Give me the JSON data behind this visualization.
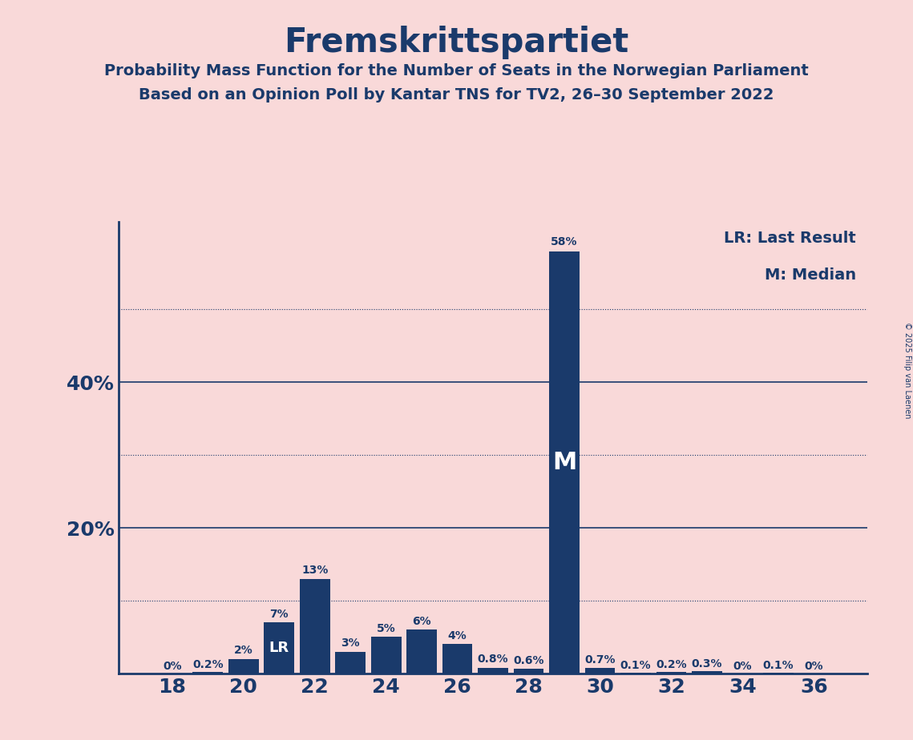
{
  "title": "Fremskrittspartiet",
  "subtitle1": "Probability Mass Function for the Number of Seats in the Norwegian Parliament",
  "subtitle2": "Based on an Opinion Poll by Kantar TNS for TV2, 26–30 September 2022",
  "background_color": "#f9d9d9",
  "bar_color": "#1a3a6b",
  "text_color": "#1a3a6b",
  "seats": [
    18,
    19,
    20,
    21,
    22,
    23,
    24,
    25,
    26,
    27,
    28,
    29,
    30,
    31,
    32,
    33,
    34,
    35,
    36
  ],
  "probabilities": [
    0.0,
    0.2,
    2.0,
    7.0,
    13.0,
    3.0,
    5.0,
    6.0,
    4.0,
    0.8,
    0.6,
    58.0,
    0.7,
    0.1,
    0.2,
    0.3,
    0.0,
    0.1,
    0.0
  ],
  "labels": [
    "0%",
    "0.2%",
    "2%",
    "7%",
    "13%",
    "3%",
    "5%",
    "6%",
    "4%",
    "0.8%",
    "0.6%",
    "58%",
    "0.7%",
    "0.1%",
    "0.2%",
    "0.3%",
    "0%",
    "0.1%",
    "0%"
  ],
  "last_result_seat": 21,
  "median_seat": 29,
  "legend_lr": "LR: Last Result",
  "legend_m": "M: Median",
  "ylim": [
    0,
    62
  ],
  "copyright": "© 2025 Filip van Laenen",
  "xlabel_ticks": [
    18,
    20,
    22,
    24,
    26,
    28,
    30,
    32,
    34,
    36
  ],
  "solid_gridlines": [
    20,
    40
  ],
  "dotted_gridlines": [
    10,
    30,
    50
  ],
  "ytick_labels": {
    "20": "20%",
    "40": "40%"
  }
}
